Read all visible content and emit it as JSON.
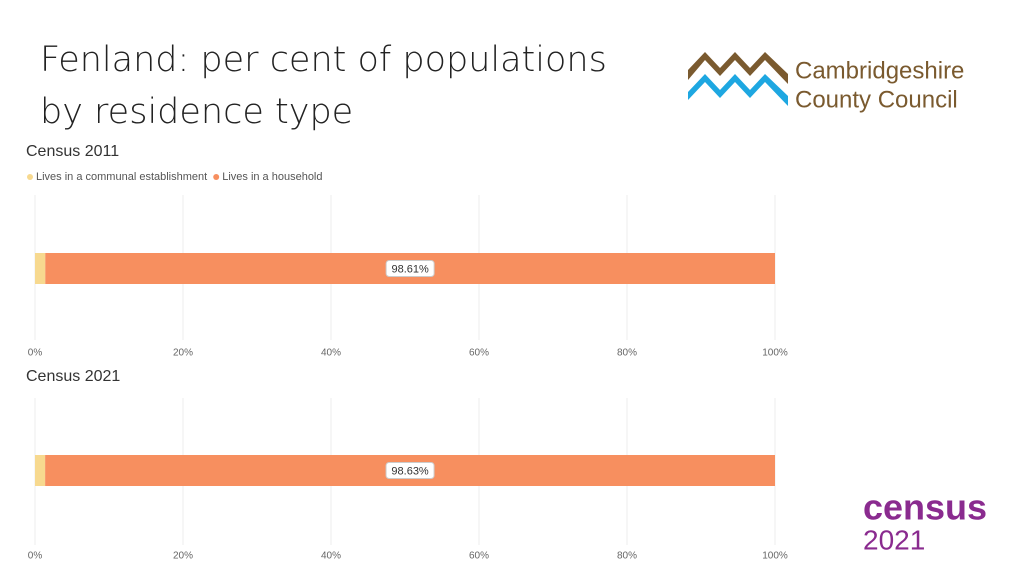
{
  "title": "Fenland: per cent of populations by residence type",
  "logos": {
    "council": [
      "Cambridgeshire",
      "County Council"
    ],
    "census": [
      "census",
      "2021"
    ]
  },
  "chart_data": [
    {
      "type": "stacked-bar-horizontal",
      "title": "Census 2011",
      "legend": true,
      "series": [
        {
          "name": "Lives in a communal establishment",
          "color": "#f7d98f",
          "values": [
            1.39
          ]
        },
        {
          "name": "Lives in a household",
          "color": "#f78f5f",
          "values": [
            98.61
          ],
          "value_labels": [
            "98.61%"
          ]
        }
      ],
      "xlim": [
        0,
        100
      ],
      "xticks": [
        {
          "value": 0,
          "label": "0%"
        },
        {
          "value": 20,
          "label": "20%"
        },
        {
          "value": 40,
          "label": "40%"
        },
        {
          "value": 60,
          "label": "60%"
        },
        {
          "value": 80,
          "label": "80%"
        },
        {
          "value": 100,
          "label": "100%"
        }
      ],
      "grid": true
    },
    {
      "type": "stacked-bar-horizontal",
      "title": "Census 2021",
      "legend": false,
      "series": [
        {
          "name": "Lives in a communal establishment",
          "color": "#f7d98f",
          "values": [
            1.37
          ]
        },
        {
          "name": "Lives in a household",
          "color": "#f78f5f",
          "values": [
            98.63
          ],
          "value_labels": [
            "98.63%"
          ]
        }
      ],
      "xlim": [
        0,
        100
      ],
      "xticks": [
        {
          "value": 0,
          "label": "0%"
        },
        {
          "value": 20,
          "label": "20%"
        },
        {
          "value": 40,
          "label": "40%"
        },
        {
          "value": 60,
          "label": "60%"
        },
        {
          "value": 80,
          "label": "80%"
        },
        {
          "value": 100,
          "label": "100%"
        }
      ],
      "grid": true
    }
  ]
}
